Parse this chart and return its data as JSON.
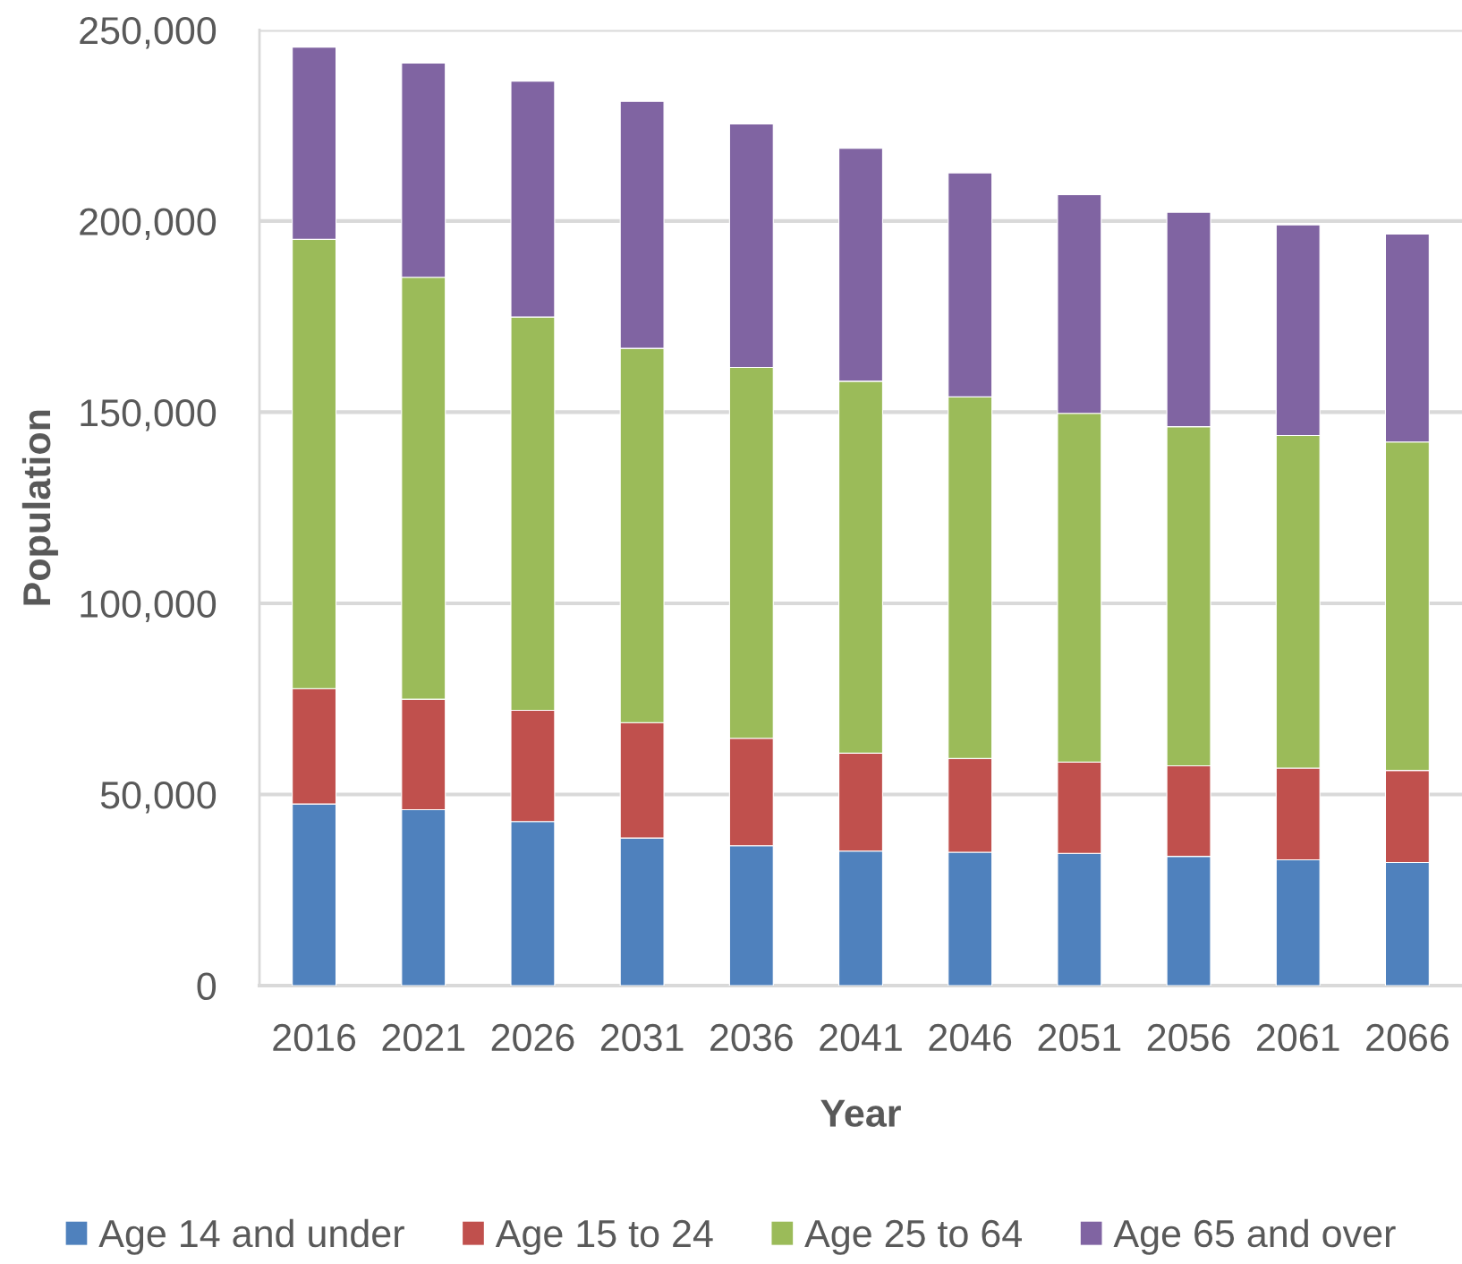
{
  "chart_data": {
    "type": "bar",
    "stacked": true,
    "xlabel": "Year",
    "ylabel": "Population",
    "categories": [
      "2016",
      "2021",
      "2026",
      "2031",
      "2036",
      "2041",
      "2046",
      "2051",
      "2056",
      "2061",
      "2066"
    ],
    "series": [
      {
        "name": "Age 14 and under",
        "color": "#4f81bd",
        "values": [
          47500,
          46000,
          42900,
          38600,
          36600,
          35200,
          34900,
          34600,
          33800,
          32900,
          32200
        ]
      },
      {
        "name": "Age 15 to 24",
        "color": "#c0504d",
        "values": [
          30200,
          28900,
          29100,
          30200,
          28100,
          25600,
          24500,
          23900,
          23700,
          24000,
          24100
        ]
      },
      {
        "name": "Age 25 to 64",
        "color": "#9bbb59",
        "values": [
          117500,
          110400,
          102900,
          97900,
          97000,
          97300,
          94600,
          91200,
          88700,
          87000,
          85900
        ]
      },
      {
        "name": "Age 65 and over",
        "color": "#8064a2",
        "values": [
          50300,
          56000,
          61700,
          64600,
          63700,
          60900,
          58600,
          57200,
          56100,
          55100,
          54400
        ]
      }
    ],
    "ylim": [
      0,
      250000
    ],
    "yticks": [
      0,
      {
        "value": 50000,
        "label": "50,000"
      },
      {
        "value": 100000,
        "label": "100,000"
      },
      {
        "value": 150000,
        "label": "150,000"
      },
      {
        "value": 200000,
        "label": "200,000"
      },
      {
        "value": 250000,
        "label": "250,000"
      }
    ],
    "grid": "y",
    "legend": "bottom"
  }
}
